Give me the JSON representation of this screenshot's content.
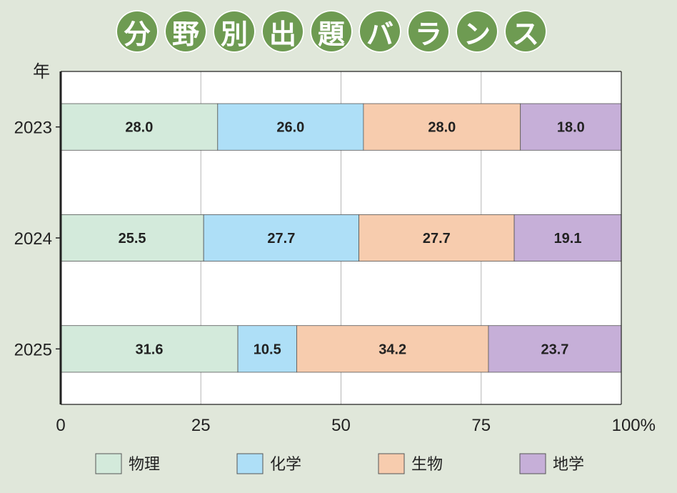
{
  "title": "分野別出題バランス",
  "chart_data": {
    "type": "bar",
    "orientation": "horizontal",
    "stacked": true,
    "title": "分野別出題バランス",
    "ylabel": "年",
    "categories": [
      "2023",
      "2024",
      "2025"
    ],
    "xlim": [
      0,
      100
    ],
    "x_ticks": [
      "0",
      "25",
      "50",
      "75",
      "100%"
    ],
    "grid": true,
    "legend_position": "bottom",
    "series": [
      {
        "name": "物理",
        "color": "#d3eadb",
        "values": [
          28.0,
          25.5,
          31.6
        ],
        "labels": [
          "28.0",
          "25.5",
          "31.6"
        ]
      },
      {
        "name": "化学",
        "color": "#aedff7",
        "values": [
          26.0,
          27.7,
          10.5
        ],
        "labels": [
          "26.0",
          "27.7",
          "10.5"
        ]
      },
      {
        "name": "生物",
        "color": "#f7ccae",
        "values": [
          28.0,
          27.7,
          34.2
        ],
        "labels": [
          "28.0",
          "27.7",
          "34.2"
        ]
      },
      {
        "name": "地学",
        "color": "#c6afd8",
        "values": [
          18.0,
          19.1,
          23.7
        ],
        "labels": [
          "18.0",
          "19.1",
          "23.7"
        ]
      }
    ]
  }
}
